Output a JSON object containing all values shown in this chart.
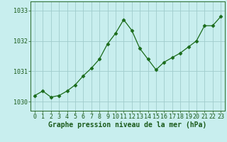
{
  "x": [
    0,
    1,
    2,
    3,
    4,
    5,
    6,
    7,
    8,
    9,
    10,
    11,
    12,
    13,
    14,
    15,
    16,
    17,
    18,
    19,
    20,
    21,
    22,
    23
  ],
  "y": [
    1030.2,
    1030.35,
    1030.15,
    1030.2,
    1030.35,
    1030.55,
    1030.85,
    1031.1,
    1031.4,
    1031.9,
    1032.25,
    1032.7,
    1032.35,
    1031.75,
    1031.4,
    1031.05,
    1031.3,
    1031.45,
    1031.6,
    1031.8,
    1032.0,
    1032.5,
    1032.5,
    1032.8
  ],
  "line_color": "#1a6b1a",
  "marker": "D",
  "marker_size": 2.5,
  "bg_color": "#c8eeee",
  "grid_color": "#a0cccc",
  "title": "Graphe pression niveau de la mer (hPa)",
  "xlim": [
    -0.5,
    23.5
  ],
  "ylim": [
    1029.7,
    1033.3
  ],
  "yticks": [
    1030,
    1031,
    1032,
    1033
  ],
  "xticks": [
    0,
    1,
    2,
    3,
    4,
    5,
    6,
    7,
    8,
    9,
    10,
    11,
    12,
    13,
    14,
    15,
    16,
    17,
    18,
    19,
    20,
    21,
    22,
    23
  ],
  "title_fontsize": 7.0,
  "tick_fontsize": 6.0,
  "title_color": "#1a5a1a",
  "tick_color": "#1a5a1a",
  "spine_color": "#2a6a2a"
}
